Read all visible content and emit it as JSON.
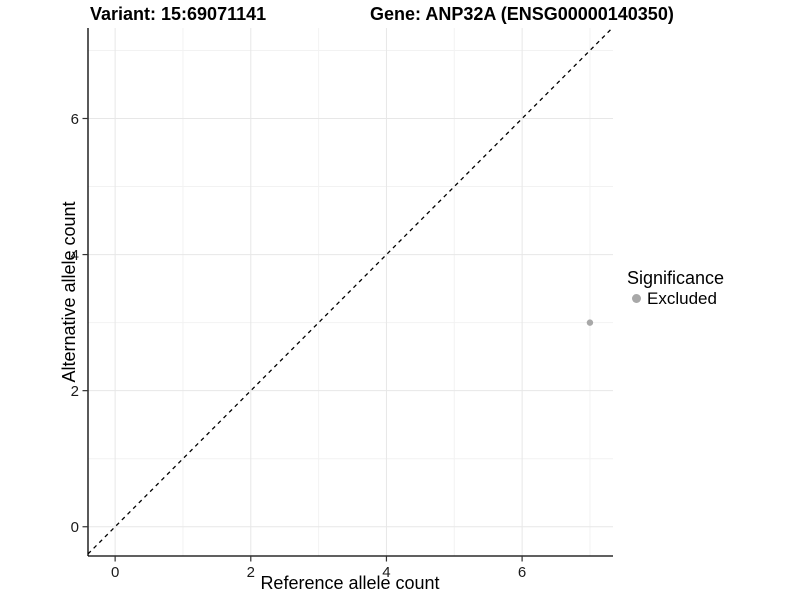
{
  "chart_data": {
    "type": "scatter",
    "title_variant": "Variant: 15:69071141",
    "title_gene": "Gene: ANP32A (ENSG00000140350)",
    "xlabel": "Reference allele count",
    "ylabel": "Alternative allele count",
    "xlim": [
      -0.4,
      7.34
    ],
    "ylim": [
      -0.43,
      7.33
    ],
    "x_ticks": [
      0,
      2,
      4,
      6
    ],
    "y_ticks": [
      0,
      2,
      4,
      6
    ],
    "x_minor_gridlines": [
      1,
      3,
      5,
      7
    ],
    "y_minor_gridlines": [
      1,
      3,
      5,
      7
    ],
    "grid": true,
    "identity_line": {
      "style": "dashed",
      "slope": 1,
      "intercept": 0,
      "color": "#000000"
    },
    "series": [
      {
        "name": "Excluded",
        "color": "#a8a8a8",
        "points": [
          {
            "x": 7,
            "y": 3
          }
        ]
      }
    ],
    "legend": {
      "title": "Significance",
      "position": "right",
      "entries": [
        {
          "label": "Excluded",
          "color": "#a8a8a8"
        }
      ]
    },
    "style": {
      "background": "#ffffff",
      "axis_color": "#000000",
      "tick_color": "#333333",
      "grid_major_color": "#e7e7e7",
      "grid_minor_color": "#f2f2f2",
      "text_color": "#000000"
    }
  }
}
